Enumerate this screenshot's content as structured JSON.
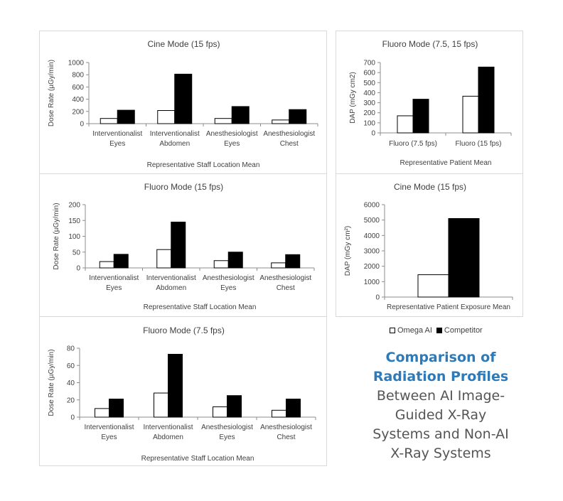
{
  "colors": {
    "omega": "#ffffff",
    "competitor": "#000000",
    "heading_accent": "#2e7ab8",
    "heading_text": "#555555"
  },
  "legend": {
    "omega": "Omega AI",
    "competitor": "Competitor"
  },
  "heading": {
    "highlight": [
      "Comparison of",
      "Radiation Profiles"
    ],
    "rest": [
      "Between AI Image-",
      "Guided X-Ray",
      "Systems and Non-AI",
      "X-Ray Systems"
    ]
  },
  "chart_data": [
    {
      "id": "cine-staff",
      "type": "bar",
      "title": "Cine Mode (15 fps)",
      "ylabel": "Dose Rate (µGy/min)",
      "xlabel": "Representative Staff Location Mean",
      "categories": [
        [
          "Interventionalist",
          "Eyes"
        ],
        [
          "Interventionalist",
          "Abdomen"
        ],
        [
          "Anesthesiologist",
          "Eyes"
        ],
        [
          "Anesthesiologist",
          "Chest"
        ]
      ],
      "ylim": [
        0,
        1000
      ],
      "yticks": [
        0,
        200,
        400,
        600,
        800,
        1000
      ],
      "series": [
        {
          "name": "Omega AI",
          "values": [
            85,
            215,
            85,
            60
          ]
        },
        {
          "name": "Competitor",
          "values": [
            220,
            810,
            280,
            230
          ]
        }
      ]
    },
    {
      "id": "fluoro-dap",
      "type": "bar",
      "title": "Fluoro Mode (7.5, 15 fps)",
      "ylabel": "DAP (mGy cm2)",
      "xlabel": "Representative Patient Mean",
      "categories": [
        [
          "Fluoro (7.5 fps)"
        ],
        [
          "Fluoro (15 fps)"
        ]
      ],
      "ylim": [
        0,
        700
      ],
      "yticks": [
        0,
        100,
        200,
        300,
        400,
        500,
        600,
        700
      ],
      "series": [
        {
          "name": "Omega AI",
          "values": [
            170,
            365
          ]
        },
        {
          "name": "Competitor",
          "values": [
            335,
            655
          ]
        }
      ]
    },
    {
      "id": "fluoro15-staff",
      "type": "bar",
      "title": "Fluoro Mode (15 fps)",
      "ylabel": "Dose Rate (µGy/min)",
      "xlabel": "Representative Staff Location Mean",
      "categories": [
        [
          "Interventionalist",
          "Eyes"
        ],
        [
          "Interventionalist",
          "Abdomen"
        ],
        [
          "Anesthesiologist",
          "Eyes"
        ],
        [
          "Anesthesiologist",
          "Chest"
        ]
      ],
      "ylim": [
        0,
        200
      ],
      "yticks": [
        0,
        50,
        100,
        150,
        200
      ],
      "series": [
        {
          "name": "Omega AI",
          "values": [
            20,
            58,
            23,
            16
          ]
        },
        {
          "name": "Competitor",
          "values": [
            43,
            145,
            50,
            42
          ]
        }
      ]
    },
    {
      "id": "cine-dap",
      "type": "bar",
      "title": "Cine Mode (15 fps)",
      "ylabel": "DAP (mGy cm²)",
      "xlabel": "Representative Patient Exposure Mean",
      "categories": [
        [
          ""
        ]
      ],
      "ylim": [
        0,
        6000
      ],
      "yticks": [
        0,
        1000,
        2000,
        3000,
        4000,
        5000,
        6000
      ],
      "series": [
        {
          "name": "Omega AI",
          "values": [
            1450
          ]
        },
        {
          "name": "Competitor",
          "values": [
            5100
          ]
        }
      ]
    },
    {
      "id": "fluoro75-staff",
      "type": "bar",
      "title": "Fluoro Mode (7.5 fps)",
      "ylabel": "Dose Rate (µGy/min)",
      "xlabel": "Representative Staff Location Mean",
      "categories": [
        [
          "Interventionalist",
          "Eyes"
        ],
        [
          "Interventionalist",
          "Abdomen"
        ],
        [
          "Anesthesiologist",
          "Eyes"
        ],
        [
          "Anesthesiologist",
          "Chest"
        ]
      ],
      "ylim": [
        0,
        80
      ],
      "yticks": [
        0,
        20,
        40,
        60,
        80
      ],
      "series": [
        {
          "name": "Omega AI",
          "values": [
            10,
            28,
            12,
            8
          ]
        },
        {
          "name": "Competitor",
          "values": [
            21,
            73,
            25,
            21
          ]
        }
      ]
    }
  ]
}
